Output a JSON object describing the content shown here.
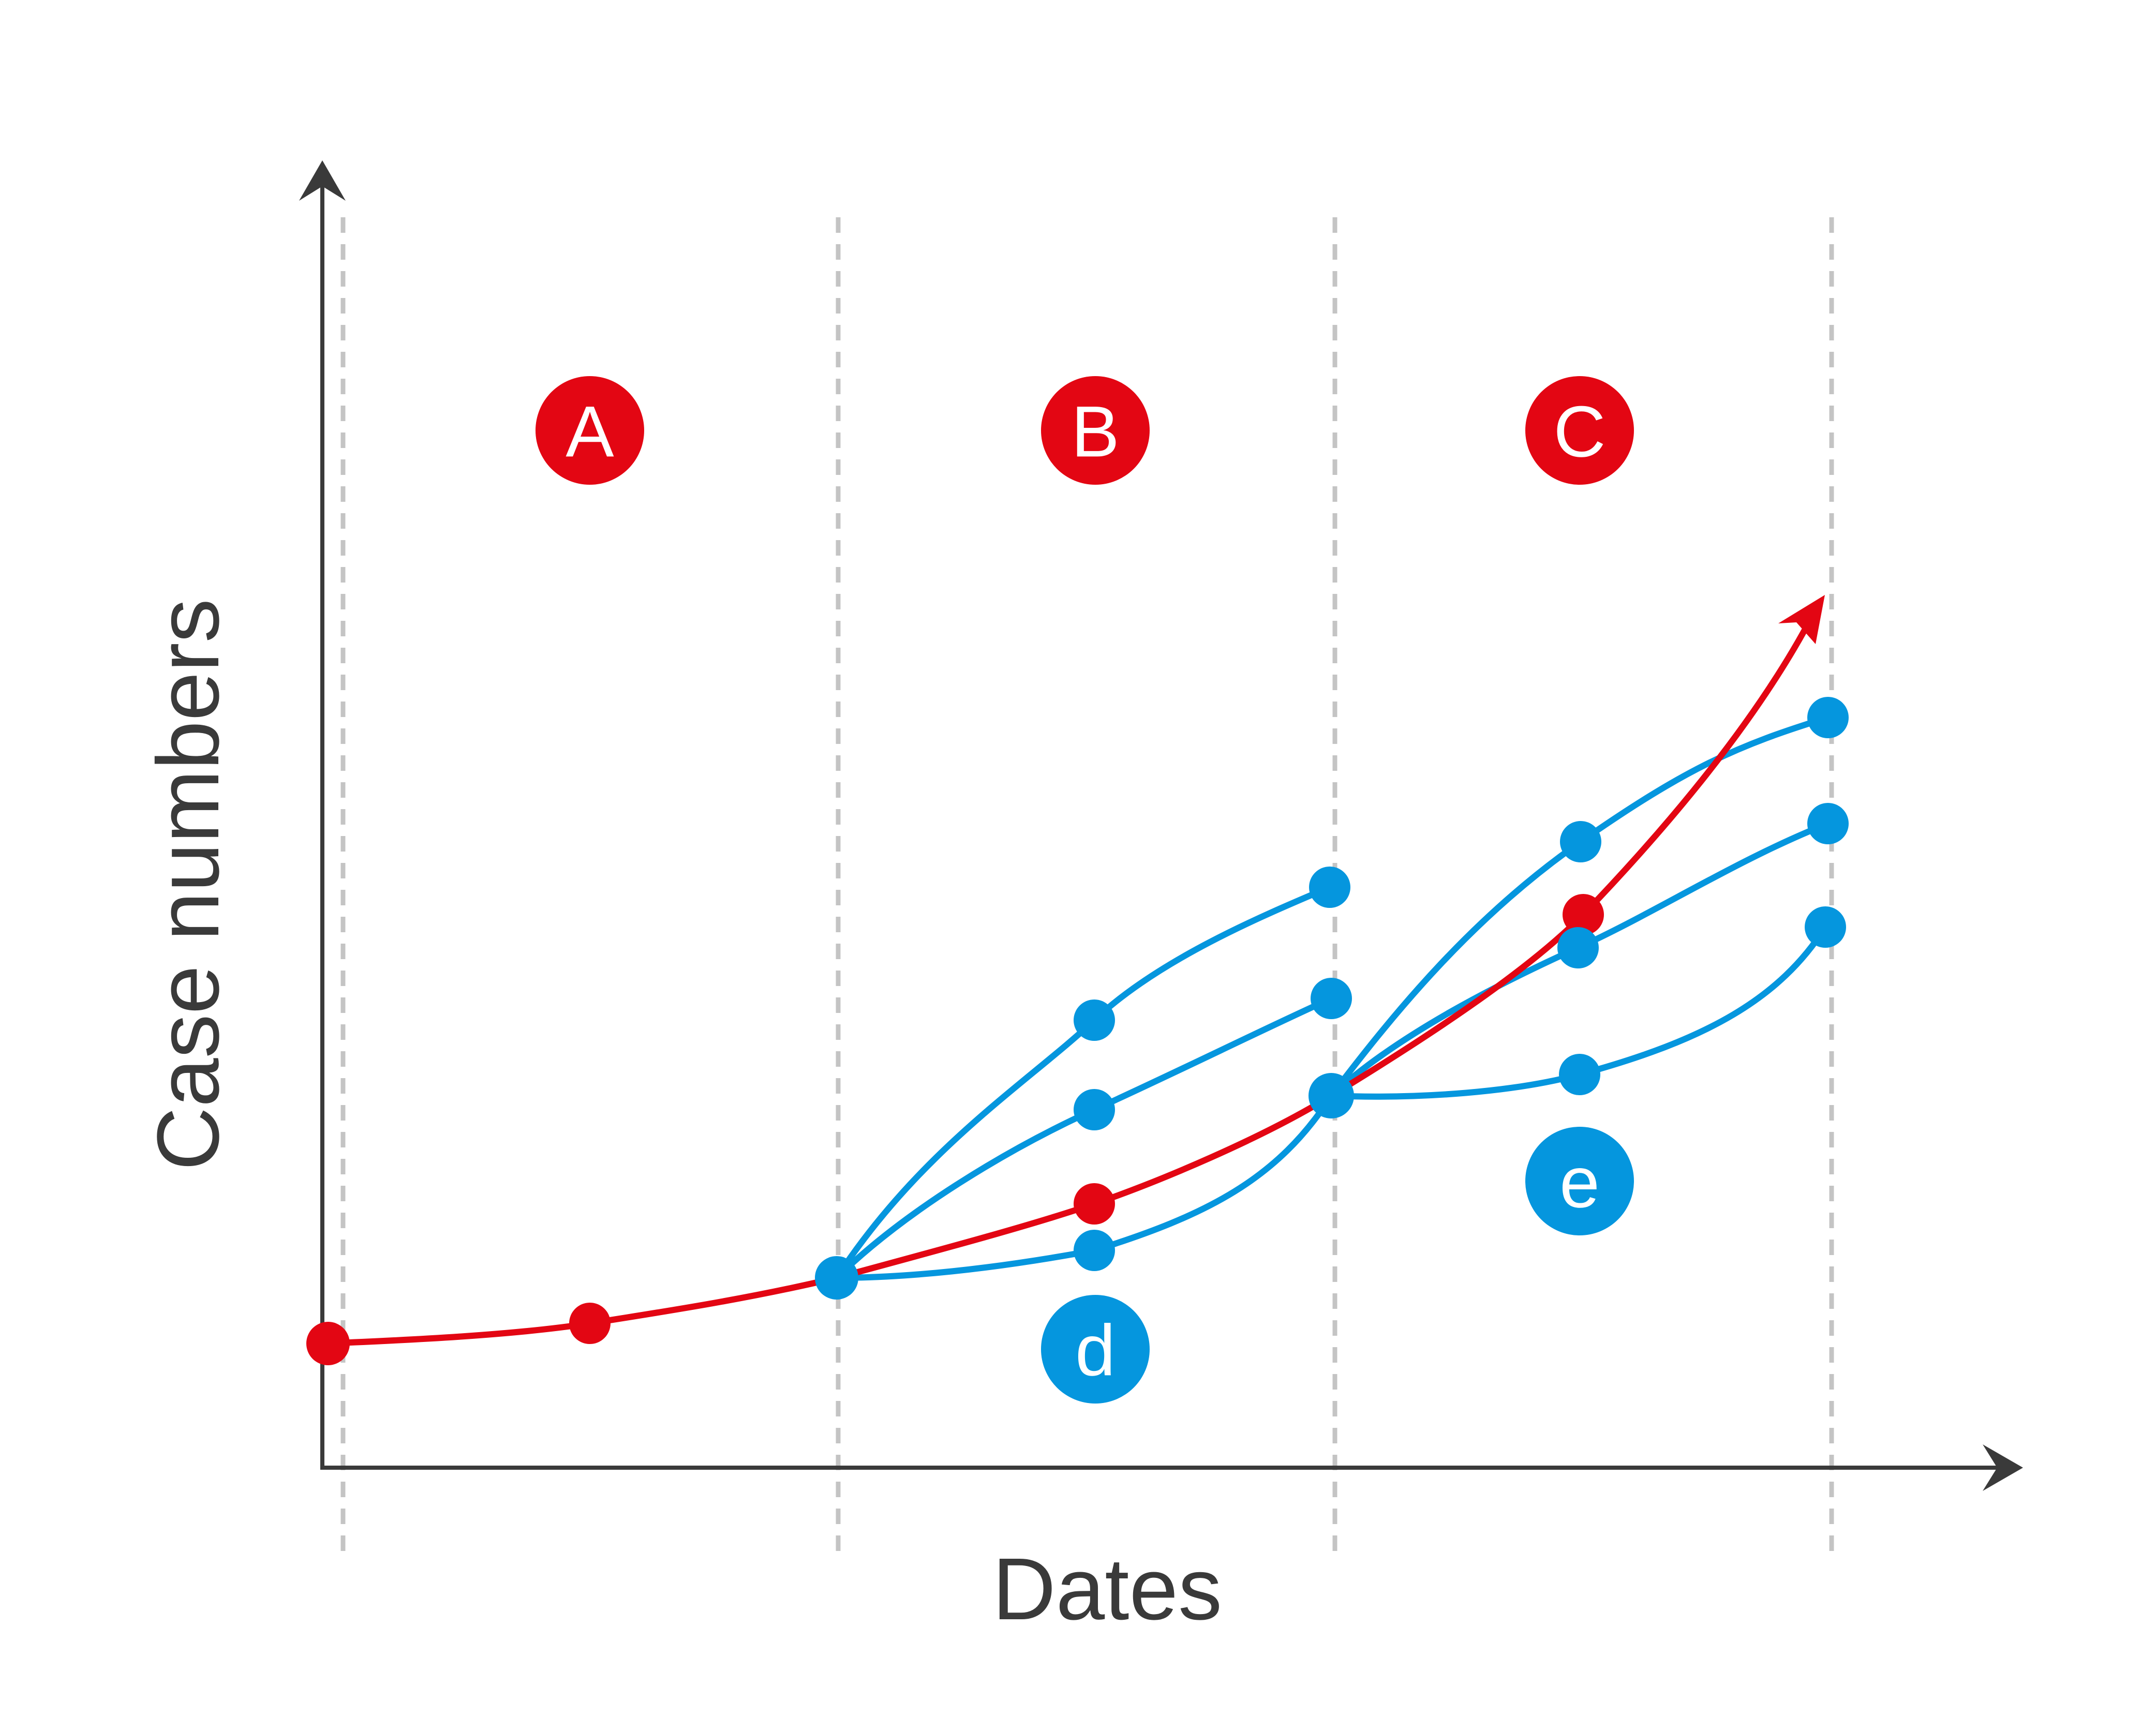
{
  "axes": {
    "x_label": "Dates",
    "y_label": "Case numbers"
  },
  "periods": [
    {
      "badge": "A"
    },
    {
      "badge": "B"
    },
    {
      "badge": "C"
    }
  ],
  "forecast_badges": [
    {
      "label": "d"
    },
    {
      "label": "e"
    }
  ],
  "colors": {
    "actual": "#e30613",
    "forecast": "#0596de",
    "axis": "#3a3a3a",
    "gridline": "#c4c4c4",
    "label_text": "#3a3a3a",
    "badge_text": "#ffffff"
  }
}
